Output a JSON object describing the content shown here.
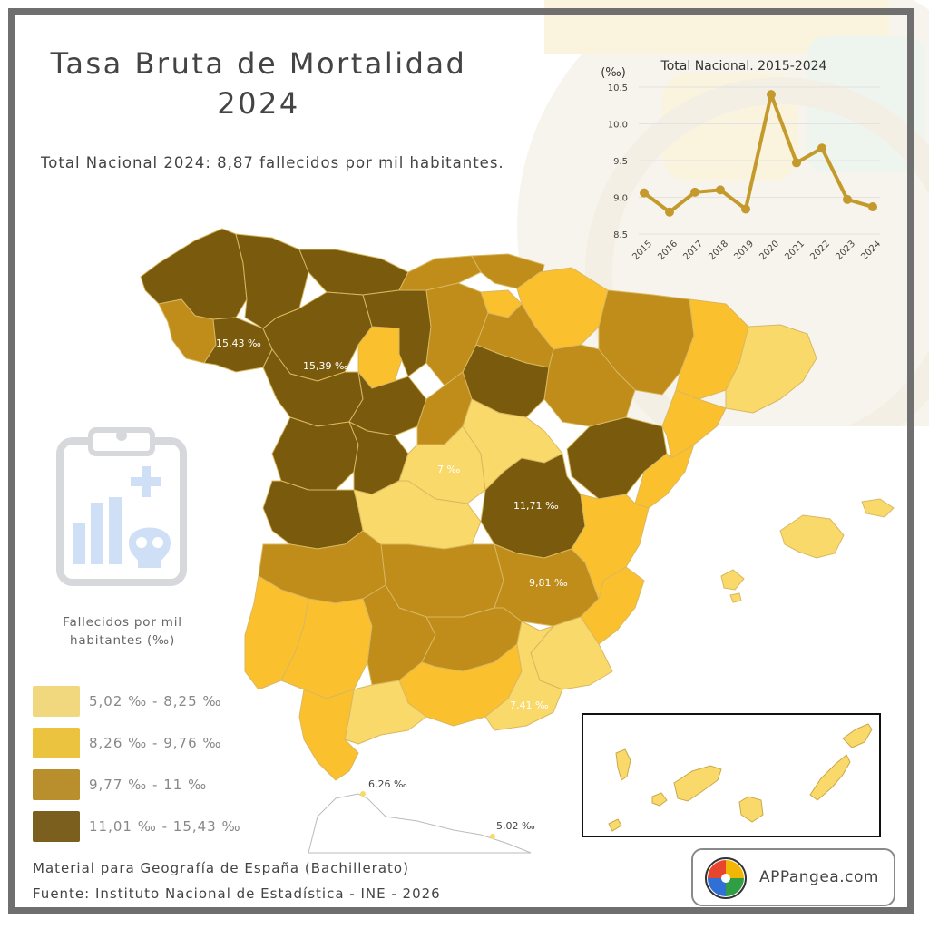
{
  "header": {
    "title_line1": "Tasa Bruta de Mortalidad",
    "title_line2": "2024",
    "subtitle": "Total Nacional 2024: 8,87 fallecidos por mil habitantes."
  },
  "map": {
    "labels": {
      "coruna": "15,43 ‰",
      "leon": "15,39 ‰",
      "madrid": "7 ‰",
      "cuenca": "11,71 ‰",
      "albacete": "9,81 ‰",
      "murcia": "7,41 ‰",
      "ceuta": "6,26 ‰",
      "melilla": "5,02 ‰"
    },
    "colors": {
      "class1": "#fad96b",
      "class2": "#fbc02d",
      "class3": "#c08c1a",
      "class4": "#7a5a0c",
      "border": "#c9a84a"
    }
  },
  "chart_data": {
    "type": "line",
    "title": "Total Nacional. 2015-2024",
    "ylabel": "(‰)",
    "x": [
      "2015",
      "2016",
      "2017",
      "2018",
      "2019",
      "2020",
      "2021",
      "2022",
      "2023",
      "2024"
    ],
    "series": [
      {
        "values": [
          9.06,
          8.8,
          9.07,
          9.1,
          8.84,
          10.4,
          9.47,
          9.67,
          8.97,
          8.87
        ]
      }
    ],
    "yticks": [
      "8.5",
      "9.0",
      "9.5",
      "10.0",
      "10.5"
    ],
    "ylim": [
      8.5,
      10.5
    ],
    "grid": true,
    "color": "#c49a2c"
  },
  "legend": {
    "caption_line1": "Fallecidos por mil",
    "caption_line2": "habitantes (‰)",
    "items": [
      {
        "label": "5,02 ‰ - 8,25 ‰",
        "color": "#f1d77e"
      },
      {
        "label": "8,26 ‰ - 9,76 ‰",
        "color": "#ecc33f"
      },
      {
        "label": "9,77 ‰ - 11 ‰",
        "color": "#b88f2c"
      },
      {
        "label": "11,01 ‰ - 15,43 ‰",
        "color": "#7a5f1f"
      }
    ]
  },
  "footer": {
    "line1": "Material para Geografía de España (Bachillerato)",
    "line2": "Fuente: Instituto Nacional de Estadística - INE - 2026"
  },
  "logo": {
    "text": "APPangea.com",
    "colors": [
      "#e8452f",
      "#f2b705",
      "#2f9e44",
      "#2f6fd6"
    ]
  },
  "icon": {
    "name": "clipboard-chart-skull-icon",
    "color": "#cfe0f6"
  }
}
